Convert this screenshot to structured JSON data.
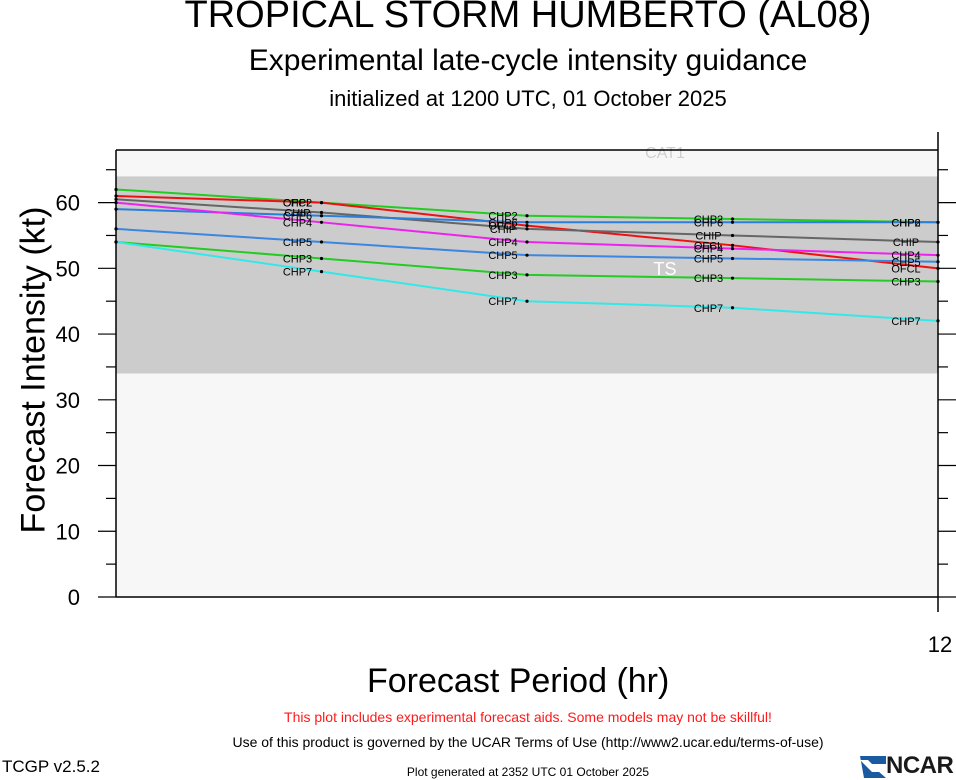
{
  "header": {
    "title": "TROPICAL STORM HUMBERTO (AL08)",
    "subtitle": "Experimental late-cycle intensity guidance",
    "init_line": "initialized at 1200 UTC, 01 October 2025"
  },
  "footer": {
    "warning": "This plot includes experimental forecast aids. Some models may not be skillful!",
    "terms": "Use of this product is governed by the UCAR Terms of Use (http://www2.ucar.edu/terms-of-use)",
    "version": "TCGP v2.5.2",
    "generated": "Plot generated at 2352 UTC   01 October 2025",
    "logo_text": "NCAR"
  },
  "chart_data": {
    "type": "line",
    "title": "TROPICAL STORM HUMBERTO (AL08)",
    "xlabel": "Forecast Period (hr)",
    "ylabel": "Forecast Intensity (kt)",
    "xlim": [
      0,
      12
    ],
    "ylim": [
      0,
      68
    ],
    "x_tick_labels": [
      "12"
    ],
    "y_ticks": [
      0,
      10,
      20,
      30,
      40,
      50,
      60
    ],
    "y_tick_labels": [
      "0",
      "10",
      "20",
      "30",
      "40",
      "50",
      "60"
    ],
    "grid": false,
    "bands": [
      {
        "label": "TS",
        "from": 34,
        "to": 64,
        "color": "#cccccc"
      },
      {
        "label": "CAT1",
        "from": 64,
        "to": 68,
        "color": "#f7f7f7"
      }
    ],
    "x": [
      0,
      3,
      6,
      9,
      12
    ],
    "series": [
      {
        "name": "CHP2",
        "color": "#22cc22",
        "values": [
          62,
          60,
          58,
          57.5,
          57
        ]
      },
      {
        "name": "OFCL",
        "color": "#ee1111",
        "values": [
          61,
          60,
          56.5,
          53.5,
          50
        ]
      },
      {
        "name": "CHIP",
        "color": "#666666",
        "values": [
          60.5,
          58.5,
          56,
          55,
          54
        ]
      },
      {
        "name": "CHP6",
        "color": "#2a7fd8",
        "values": [
          59,
          58,
          57,
          57,
          57
        ]
      },
      {
        "name": "CHP4",
        "color": "#ee22ee",
        "values": [
          60,
          57,
          54,
          53,
          52
        ]
      },
      {
        "name": "CHP5",
        "color": "#3a86e0",
        "values": [
          56,
          54,
          52,
          51.5,
          51
        ]
      },
      {
        "name": "CHP3",
        "color": "#22cc22",
        "values": [
          54,
          51.5,
          49,
          48.5,
          48
        ]
      },
      {
        "name": "CHP7",
        "color": "#33e8e8",
        "values": [
          54,
          49.5,
          45,
          44,
          42
        ]
      }
    ],
    "colors": {
      "axis": "#000000",
      "plot_background": "#f7f7f7",
      "ts_band": "#cccccc",
      "band_label": "#ffffff",
      "warning_text": "#ff1a1a",
      "logo": "#1a5aa0"
    }
  }
}
